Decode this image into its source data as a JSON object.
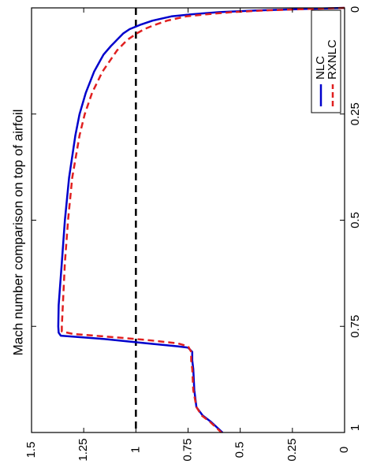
{
  "chart_data": {
    "type": "line",
    "title": "Mach number comparison on top of airfoil",
    "xlabel": "",
    "ylabel": "",
    "orientation": "rotated-90-clockwise",
    "xlim": [
      0,
      1
    ],
    "ylim": [
      0,
      1.5
    ],
    "x_ticks": [
      "0",
      "0.25",
      "0.5",
      "0.75",
      "1"
    ],
    "x_tick_values": [
      0,
      0.25,
      0.5,
      0.75,
      1
    ],
    "y_ticks": [
      "0",
      "0.25",
      "0.5",
      "0.75",
      "1",
      "1.25",
      "1.5"
    ],
    "y_tick_values": [
      0,
      0.25,
      0.5,
      0.75,
      1,
      1.25,
      1.5
    ],
    "grid": false,
    "legend_position": "top-right",
    "reference_line": {
      "y": 1,
      "style": "dashed",
      "color": "#000000"
    },
    "series": [
      {
        "name": "NLC",
        "color": "#0000cc",
        "style": "solid",
        "points": [
          [
            0.0,
            0.0
          ],
          [
            0.003,
            0.22
          ],
          [
            0.006,
            0.42
          ],
          [
            0.01,
            0.6
          ],
          [
            0.015,
            0.73
          ],
          [
            0.02,
            0.83
          ],
          [
            0.03,
            0.92
          ],
          [
            0.04,
            0.98
          ],
          [
            0.05,
            1.03
          ],
          [
            0.06,
            1.06
          ],
          [
            0.075,
            1.09
          ],
          [
            0.08,
            1.1
          ],
          [
            0.09,
            1.12
          ],
          [
            0.11,
            1.155
          ],
          [
            0.15,
            1.2
          ],
          [
            0.2,
            1.24
          ],
          [
            0.25,
            1.27
          ],
          [
            0.3,
            1.29
          ],
          [
            0.4,
            1.32
          ],
          [
            0.5,
            1.34
          ],
          [
            0.6,
            1.355
          ],
          [
            0.7,
            1.37
          ],
          [
            0.75,
            1.372
          ],
          [
            0.765,
            1.37
          ],
          [
            0.772,
            1.36
          ],
          [
            0.78,
            1.15
          ],
          [
            0.79,
            0.95
          ],
          [
            0.797,
            0.8
          ],
          [
            0.8,
            0.75
          ],
          [
            0.81,
            0.73
          ],
          [
            0.83,
            0.73
          ],
          [
            0.85,
            0.725
          ],
          [
            0.9,
            0.72
          ],
          [
            0.94,
            0.71
          ],
          [
            0.96,
            0.68
          ],
          [
            0.975,
            0.64
          ],
          [
            1.0,
            0.585
          ]
        ]
      },
      {
        "name": "RXNLC",
        "color": "#e02020",
        "style": "dashed",
        "points": [
          [
            0.0,
            0.0
          ],
          [
            0.003,
            0.2
          ],
          [
            0.006,
            0.38
          ],
          [
            0.01,
            0.54
          ],
          [
            0.015,
            0.66
          ],
          [
            0.02,
            0.76
          ],
          [
            0.03,
            0.85
          ],
          [
            0.04,
            0.91
          ],
          [
            0.05,
            0.96
          ],
          [
            0.06,
            0.995
          ],
          [
            0.075,
            1.04
          ],
          [
            0.1,
            1.09
          ],
          [
            0.15,
            1.16
          ],
          [
            0.2,
            1.21
          ],
          [
            0.25,
            1.245
          ],
          [
            0.3,
            1.27
          ],
          [
            0.4,
            1.305
          ],
          [
            0.5,
            1.325
          ],
          [
            0.6,
            1.34
          ],
          [
            0.7,
            1.35
          ],
          [
            0.75,
            1.355
          ],
          [
            0.762,
            1.355
          ],
          [
            0.768,
            1.3
          ],
          [
            0.775,
            1.12
          ],
          [
            0.782,
            0.95
          ],
          [
            0.79,
            0.8
          ],
          [
            0.797,
            0.75
          ],
          [
            0.81,
            0.735
          ],
          [
            0.83,
            0.735
          ],
          [
            0.85,
            0.73
          ],
          [
            0.9,
            0.725
          ],
          [
            0.94,
            0.71
          ],
          [
            0.96,
            0.685
          ],
          [
            0.975,
            0.645
          ],
          [
            1.0,
            0.59
          ]
        ]
      }
    ]
  }
}
